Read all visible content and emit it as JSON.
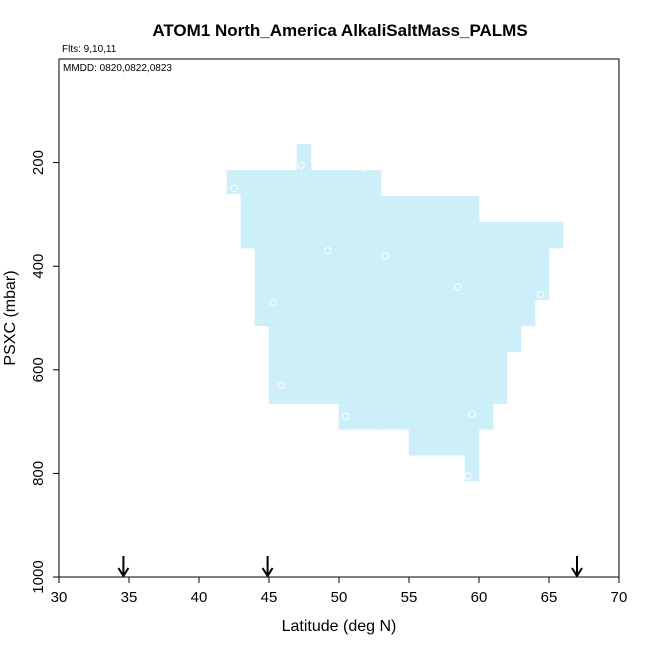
{
  "chart_data": {
    "type": "heatmap",
    "title": "ATOM1 North_America AlkaliSaltMass_PALMS",
    "flights_note": "Flts: 9,10,11",
    "dates_note": "MMDD: 0820,0822,0823",
    "xlabel": "Latitude (deg N)",
    "ylabel": "PSXC (mbar)",
    "xlim": [
      30,
      70
    ],
    "ylim": [
      1000,
      0
    ],
    "x_ticks": [
      30,
      35,
      40,
      45,
      50,
      55,
      60,
      65,
      70
    ],
    "y_ticks": [
      200,
      400,
      600,
      800,
      1000
    ],
    "fill_color": "#cdeffa",
    "coverage_columns": [
      {
        "lat_min": 42,
        "lat_max": 43,
        "p_top": 215,
        "p_bottom": 260
      },
      {
        "lat_min": 43,
        "lat_max": 44,
        "p_top": 215,
        "p_bottom": 365
      },
      {
        "lat_min": 44,
        "lat_max": 45,
        "p_top": 215,
        "p_bottom": 515
      },
      {
        "lat_min": 45,
        "lat_max": 47,
        "p_top": 215,
        "p_bottom": 665
      },
      {
        "lat_min": 47,
        "lat_max": 48,
        "p_top": 165,
        "p_bottom": 665
      },
      {
        "lat_min": 48,
        "lat_max": 50,
        "p_top": 215,
        "p_bottom": 665
      },
      {
        "lat_min": 50,
        "lat_max": 53,
        "p_top": 215,
        "p_bottom": 715
      },
      {
        "lat_min": 53,
        "lat_max": 55,
        "p_top": 265,
        "p_bottom": 715
      },
      {
        "lat_min": 55,
        "lat_max": 59,
        "p_top": 265,
        "p_bottom": 765
      },
      {
        "lat_min": 59,
        "lat_max": 60,
        "p_top": 265,
        "p_bottom": 815
      },
      {
        "lat_min": 60,
        "lat_max": 61,
        "p_top": 315,
        "p_bottom": 715
      },
      {
        "lat_min": 61,
        "lat_max": 62,
        "p_top": 315,
        "p_bottom": 665
      },
      {
        "lat_min": 62,
        "lat_max": 63,
        "p_top": 315,
        "p_bottom": 565
      },
      {
        "lat_min": 63,
        "lat_max": 64,
        "p_top": 315,
        "p_bottom": 515
      },
      {
        "lat_min": 64,
        "lat_max": 65,
        "p_top": 315,
        "p_bottom": 465
      },
      {
        "lat_min": 65,
        "lat_max": 66,
        "p_top": 315,
        "p_bottom": 365
      }
    ],
    "points": [
      {
        "lat": 42.5,
        "p": 250
      },
      {
        "lat": 47.3,
        "p": 205
      },
      {
        "lat": 51.8,
        "p": 210
      },
      {
        "lat": 49.2,
        "p": 370
      },
      {
        "lat": 53.3,
        "p": 380
      },
      {
        "lat": 58.5,
        "p": 440
      },
      {
        "lat": 64.4,
        "p": 455
      },
      {
        "lat": 45.3,
        "p": 470
      },
      {
        "lat": 45.9,
        "p": 630
      },
      {
        "lat": 50.5,
        "p": 690
      },
      {
        "lat": 59.5,
        "p": 685
      },
      {
        "lat": 59.2,
        "p": 805
      }
    ],
    "arrows_lat": [
      34.6,
      44.9,
      67.0
    ]
  }
}
